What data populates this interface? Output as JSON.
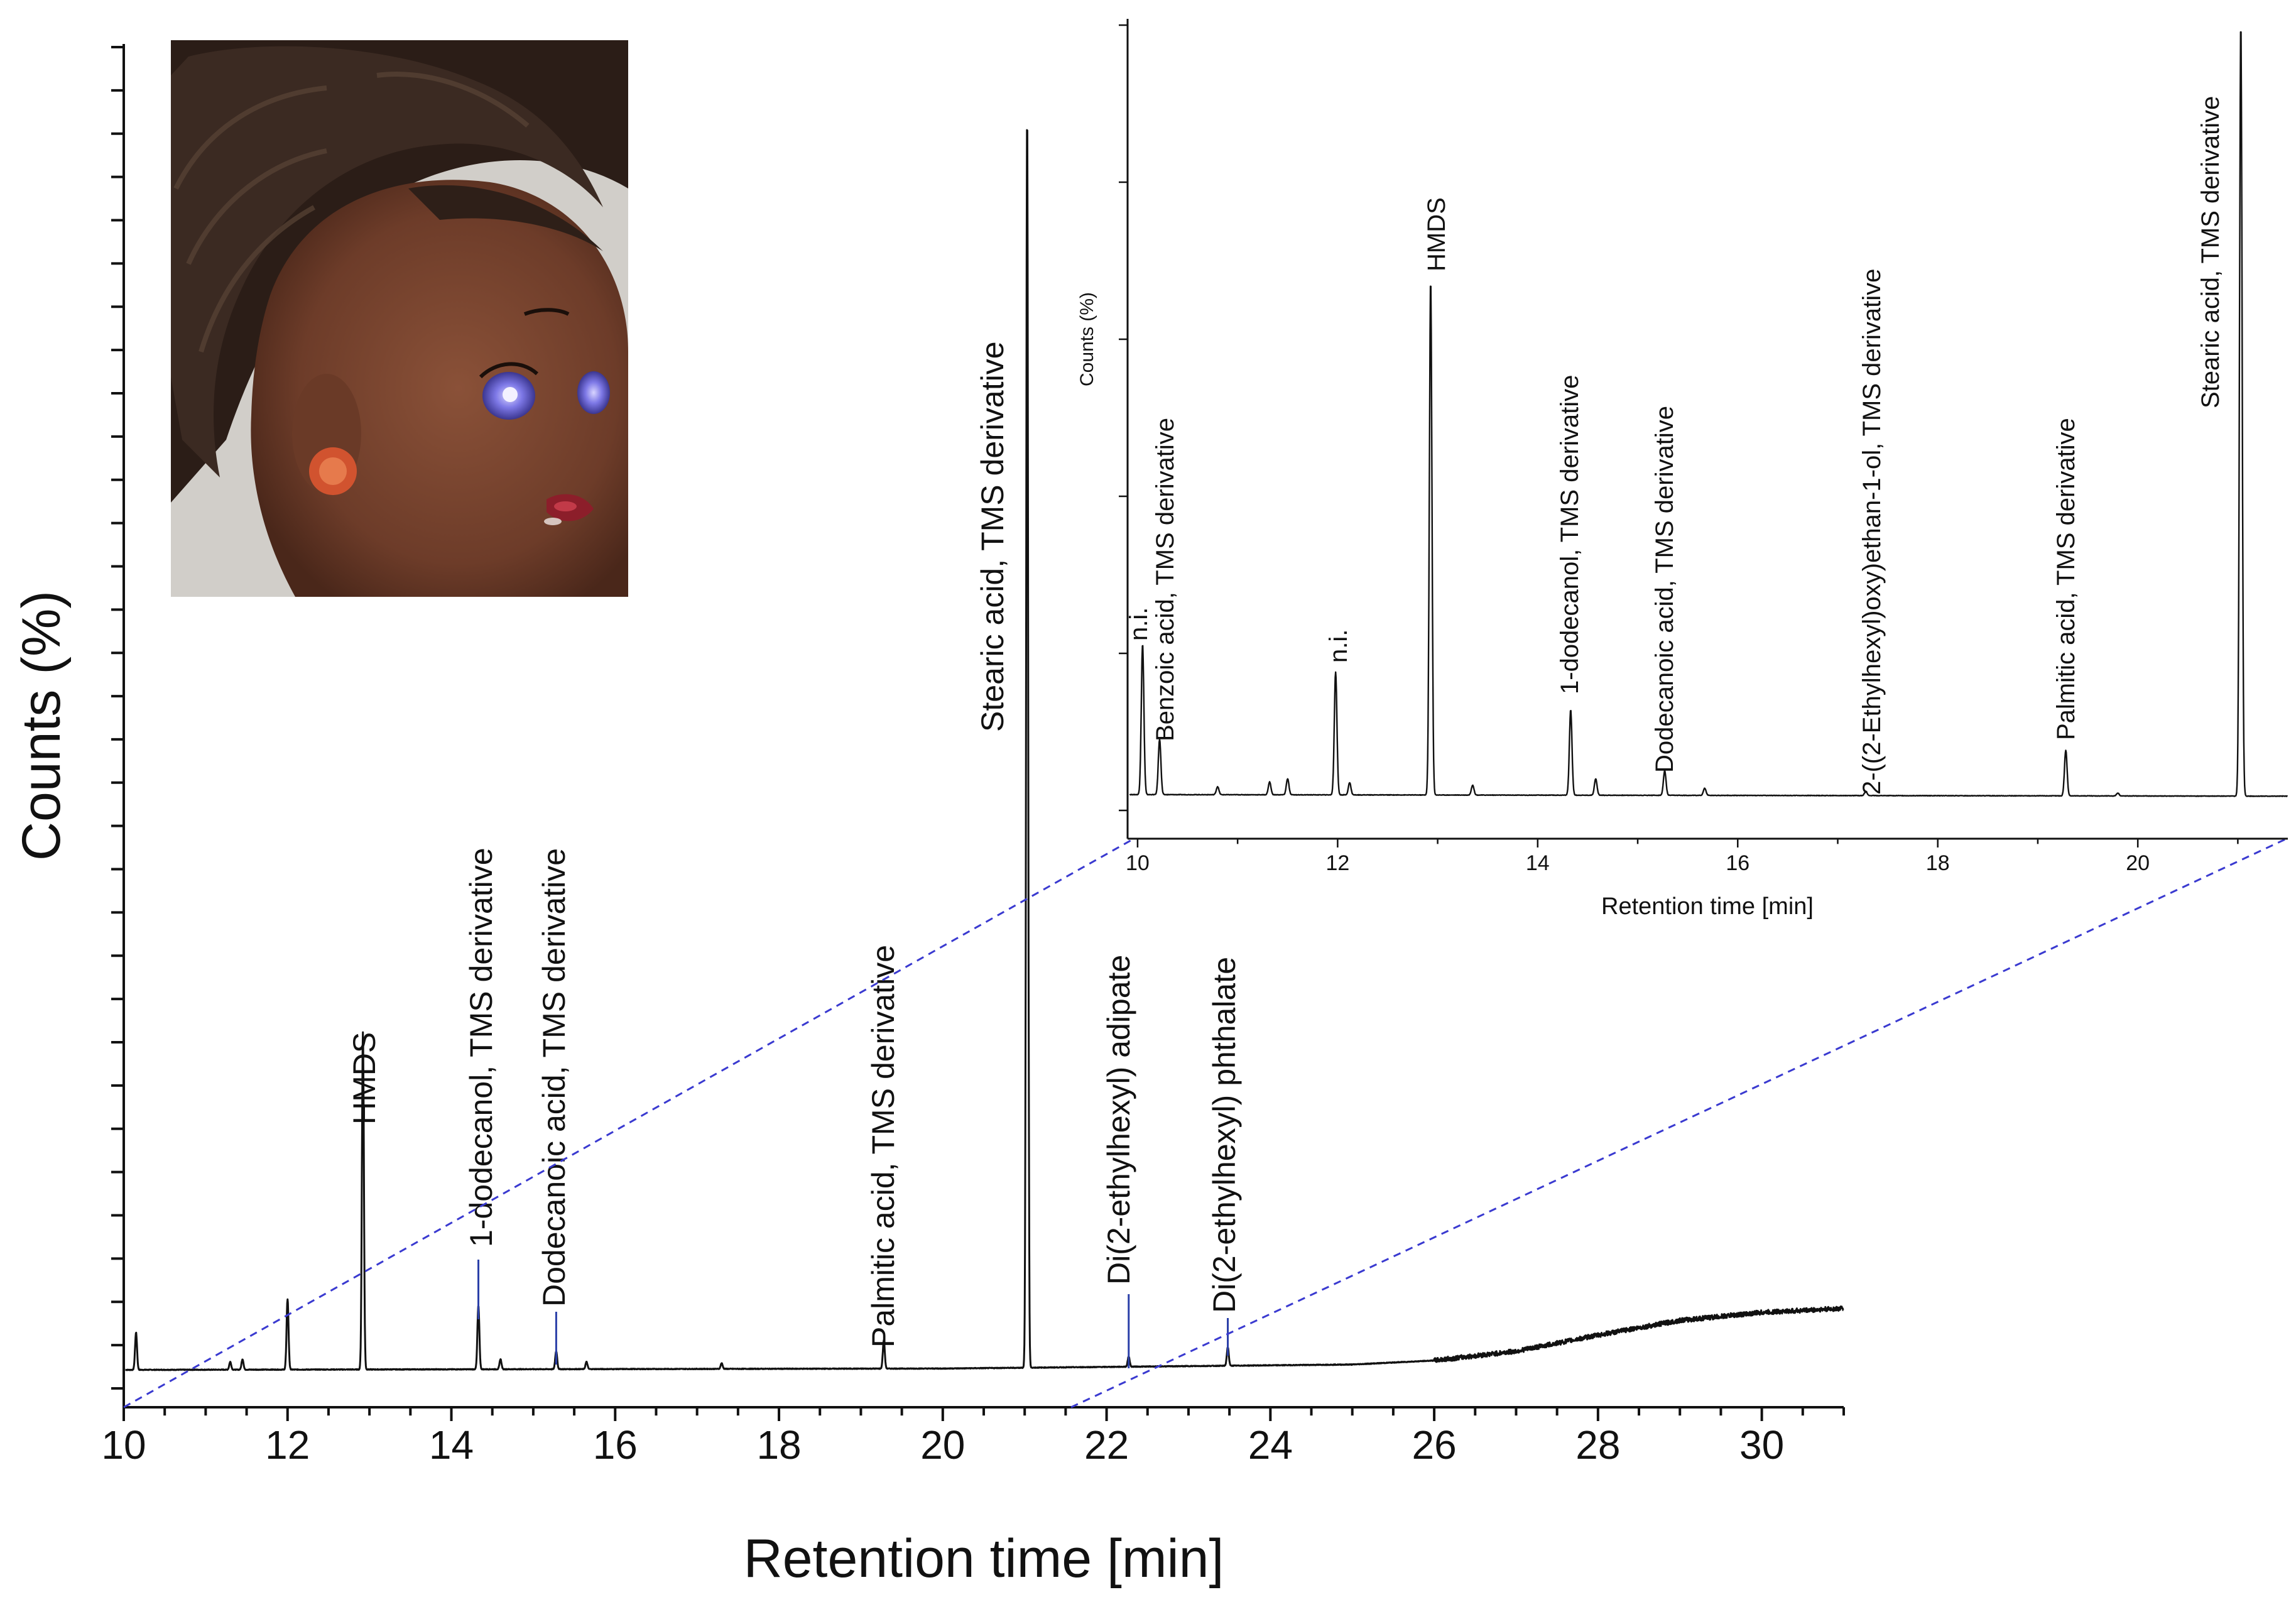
{
  "colors": {
    "trace": "#111111",
    "zoom_lines": "#3a3ad0",
    "leader_lines": "#2a3fa8"
  },
  "photo": {
    "icon": "doll-head-photo"
  },
  "chart_data": [
    {
      "id": "main",
      "type": "line",
      "title": "",
      "xlabel": "Retention time [min]",
      "ylabel": "Counts (%)",
      "xlim": [
        10,
        31
      ],
      "xticks": [
        10,
        12,
        14,
        16,
        18,
        20,
        22,
        24,
        26,
        28,
        30
      ],
      "ylim": [
        0,
        100
      ],
      "grid": false,
      "series": [
        {
          "baseline": [
            [
              10,
              1.2
            ],
            [
              20,
              1.3
            ],
            [
              25,
              1.6
            ],
            [
              26,
              1.9
            ],
            [
              27,
              2.6
            ],
            [
              28,
              3.8
            ],
            [
              29,
              4.9
            ],
            [
              30,
              5.5
            ],
            [
              31,
              5.8
            ]
          ],
          "peaks": [
            {
              "x": 10.15,
              "y": 4.0
            },
            {
              "x": 11.3,
              "y": 1.8
            },
            {
              "x": 11.45,
              "y": 2.0
            },
            {
              "x": 12.0,
              "y": 6.5,
              "label": ""
            },
            {
              "x": 12.92,
              "y": 26.5,
              "label": "HMDS"
            },
            {
              "x": 14.33,
              "y": 6.0,
              "label": "1-dodecanol, TMS derivative"
            },
            {
              "x": 14.6,
              "y": 2.0
            },
            {
              "x": 15.28,
              "y": 2.6,
              "label": "Dodecanoic acid, TMS derivative"
            },
            {
              "x": 15.65,
              "y": 1.8
            },
            {
              "x": 17.3,
              "y": 1.7
            },
            {
              "x": 19.28,
              "y": 3.4,
              "label": "Palmitic acid, TMS derivative"
            },
            {
              "x": 21.03,
              "y": 95.3,
              "label": "Stearic acid, TMS derivative"
            },
            {
              "x": 22.27,
              "y": 2.2,
              "label": "Di(2-ethylhexyl) adipate"
            },
            {
              "x": 23.48,
              "y": 2.9,
              "label": "Di(2-ethylhexyl) phthalate"
            }
          ]
        }
      ]
    },
    {
      "id": "inset",
      "type": "line",
      "title": "",
      "xlabel": "Retention time [min]",
      "ylabel": "Counts (%)",
      "xlim": [
        9.9,
        21.5
      ],
      "xticks": [
        10,
        12,
        14,
        16,
        18,
        20
      ],
      "ylim": [
        0,
        100
      ],
      "grid": false,
      "series": [
        {
          "baseline": [
            [
              9.9,
              2.0
            ],
            [
              21.5,
              1.8
            ]
          ],
          "peaks": [
            {
              "x": 10.05,
              "y": 21.0,
              "label": "n.i."
            },
            {
              "x": 10.22,
              "y": 9.0,
              "label": "Benzoic acid, TMS derivative"
            },
            {
              "x": 10.8,
              "y": 3.0
            },
            {
              "x": 11.32,
              "y": 3.6
            },
            {
              "x": 11.5,
              "y": 4.0
            },
            {
              "x": 11.98,
              "y": 17.5,
              "label": "n.i."
            },
            {
              "x": 12.12,
              "y": 3.5
            },
            {
              "x": 12.93,
              "y": 67.0,
              "label": "HMDS"
            },
            {
              "x": 13.35,
              "y": 3.2
            },
            {
              "x": 14.33,
              "y": 12.7,
              "label": "1-dodecanol, TMS derivative"
            },
            {
              "x": 14.58,
              "y": 4.0
            },
            {
              "x": 15.27,
              "y": 5.0,
              "label": "Dodecanoic acid, TMS derivative"
            },
            {
              "x": 15.67,
              "y": 2.8
            },
            {
              "x": 17.28,
              "y": 2.4,
              "label": "2-((2-Ethylhexyl)oxy)ethan-1-ol, TMS derivative"
            },
            {
              "x": 19.28,
              "y": 7.6,
              "label": "Palmitic acid, TMS derivative"
            },
            {
              "x": 19.8,
              "y": 2.2
            },
            {
              "x": 21.03,
              "y": 99.5,
              "label": "Stearic acid, TMS derivative"
            }
          ]
        }
      ]
    }
  ]
}
